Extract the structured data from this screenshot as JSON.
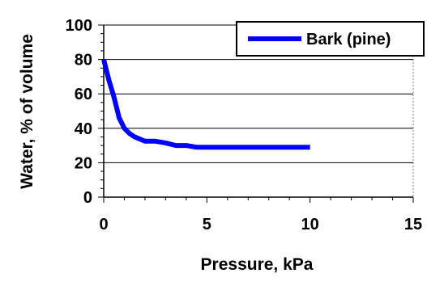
{
  "chart_data": {
    "type": "line",
    "title": "",
    "xlabel": "Pressure, kPa",
    "ylabel": "Water, % of volume",
    "xlim": [
      0,
      15
    ],
    "ylim": [
      0,
      100
    ],
    "xticks": [
      "0",
      "5",
      "10",
      "15"
    ],
    "yticks": [
      "0",
      "20",
      "40",
      "60",
      "80",
      "100"
    ],
    "grid": "horizontal major lines at 20, 40, 60, 80, 100",
    "legend_position": "top-right",
    "series": [
      {
        "name": "Bark (pine)",
        "color": "#0000ff",
        "x": [
          0,
          0.25,
          0.5,
          0.75,
          1,
          1.25,
          1.5,
          2,
          2.5,
          3,
          3.5,
          4,
          4.5,
          5,
          6,
          7,
          8,
          9,
          10
        ],
        "y": [
          80,
          68,
          58,
          46,
          40,
          37,
          35,
          32.5,
          32.5,
          31.5,
          30,
          30,
          29,
          29,
          29,
          29,
          29,
          29,
          29
        ]
      }
    ]
  }
}
